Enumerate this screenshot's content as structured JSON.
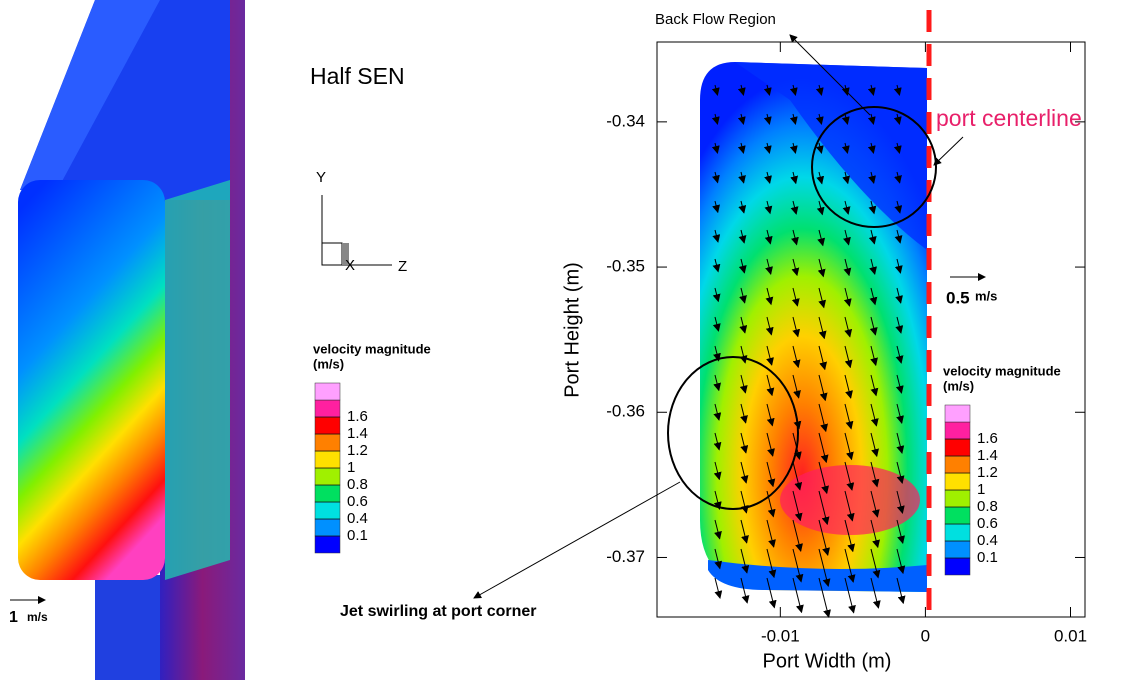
{
  "left_panel": {
    "title": "Half SEN",
    "axes": {
      "y": "Y",
      "x": "X",
      "z": "Z"
    },
    "legend": {
      "title": "velocity magnitude",
      "unit": "(m/s)",
      "levels": [
        0.1,
        0.4,
        0.6,
        0.8,
        1,
        1.2,
        1.4,
        1.6
      ],
      "colors": [
        "#0000ff",
        "#0090ff",
        "#00e0e0",
        "#00e060",
        "#a0f000",
        "#ffe000",
        "#ff8000",
        "#ff0000",
        "#ff20a0",
        "#ffa0ff"
      ]
    },
    "scale": {
      "value": 1,
      "unit": "m/s"
    }
  },
  "chart_data": {
    "type": "contour",
    "xlabel": "Port Width (m)",
    "ylabel": "Port Height (m)",
    "xlim": [
      -0.0185,
      0.011
    ],
    "ylim": [
      -0.3741,
      -0.3345
    ],
    "xticks": [
      -0.01,
      0,
      0.01
    ],
    "yticks": [
      -0.37,
      -0.36,
      -0.35,
      -0.34
    ],
    "legend": {
      "title": "velocity magnitude",
      "unit": "(m/s)",
      "levels": [
        0.1,
        0.4,
        0.6,
        0.8,
        1,
        1.2,
        1.4,
        1.6
      ],
      "colors": [
        "#0000ff",
        "#0090ff",
        "#00e0e0",
        "#00e060",
        "#a0f000",
        "#ffe000",
        "#ff8000",
        "#ff0000",
        "#ff20a0",
        "#ffa0ff"
      ]
    },
    "scale": {
      "value": 0.5,
      "unit": "m/s"
    },
    "annotations": [
      "Back Flow Region",
      "port centerline",
      "Jet swirling at port corner"
    ]
  }
}
